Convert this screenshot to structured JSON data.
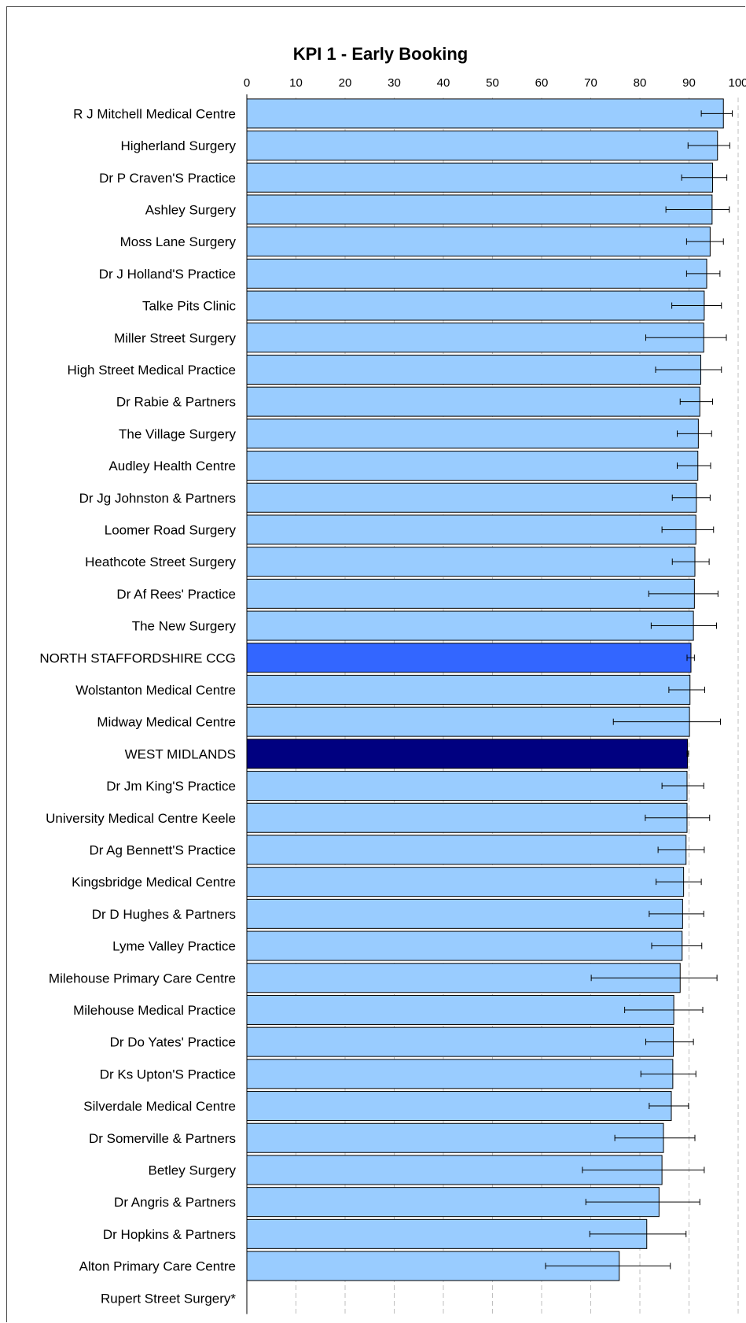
{
  "chart_data": {
    "type": "bar",
    "orientation": "horizontal",
    "title": "KPI 1 - Early Booking",
    "xlabel": "",
    "ylabel": "",
    "xlim": [
      0,
      100
    ],
    "xticks": [
      "0",
      "10",
      "20",
      "30",
      "40",
      "50",
      "60",
      "70",
      "80",
      "90",
      "100"
    ],
    "grid": "vertical dashed",
    "legend": "none",
    "colors": {
      "practice": "#99ccff",
      "ccg": "#3366ff",
      "region": "#000080",
      "outline": "#000000",
      "grid": "#bfbfbf"
    },
    "bars": [
      {
        "label": "R J Mitchell Medical Centre",
        "value": 97.0,
        "low": 92.5,
        "high": 98.8,
        "group": "practice"
      },
      {
        "label": "Higherland Surgery",
        "value": 95.8,
        "low": 89.8,
        "high": 98.3,
        "group": "practice"
      },
      {
        "label": "Dr P Craven'S Practice",
        "value": 94.8,
        "low": 88.5,
        "high": 97.7,
        "group": "practice"
      },
      {
        "label": "Ashley Surgery",
        "value": 94.7,
        "low": 85.3,
        "high": 98.2,
        "group": "practice"
      },
      {
        "label": "Moss Lane Surgery",
        "value": 94.3,
        "low": 89.5,
        "high": 97.0,
        "group": "practice"
      },
      {
        "label": "Dr J Holland'S Practice",
        "value": 93.6,
        "low": 89.5,
        "high": 96.3,
        "group": "practice"
      },
      {
        "label": "Talke Pits Clinic",
        "value": 93.1,
        "low": 86.5,
        "high": 96.6,
        "group": "practice"
      },
      {
        "label": "Miller Street Surgery",
        "value": 93.0,
        "low": 81.2,
        "high": 97.6,
        "group": "practice"
      },
      {
        "label": "High Street Medical Practice",
        "value": 92.4,
        "low": 83.2,
        "high": 96.6,
        "group": "practice"
      },
      {
        "label": "Dr Rabie & Partners",
        "value": 92.2,
        "low": 88.2,
        "high": 94.8,
        "group": "practice"
      },
      {
        "label": "The Village Surgery",
        "value": 91.9,
        "low": 87.6,
        "high": 94.6,
        "group": "practice"
      },
      {
        "label": "Audley Health Centre",
        "value": 91.8,
        "low": 87.6,
        "high": 94.4,
        "group": "practice"
      },
      {
        "label": "Dr Jg Johnston & Partners",
        "value": 91.5,
        "low": 86.6,
        "high": 94.3,
        "group": "practice"
      },
      {
        "label": "Loomer Road Surgery",
        "value": 91.4,
        "low": 84.5,
        "high": 95.0,
        "group": "practice"
      },
      {
        "label": "Heathcote Street Surgery",
        "value": 91.2,
        "low": 86.6,
        "high": 94.1,
        "group": "practice"
      },
      {
        "label": "Dr Af Rees' Practice",
        "value": 91.1,
        "low": 81.8,
        "high": 95.9,
        "group": "practice"
      },
      {
        "label": "The New Surgery",
        "value": 90.9,
        "low": 82.3,
        "high": 95.6,
        "group": "practice"
      },
      {
        "label": "NORTH STAFFORDSHIRE CCG",
        "value": 90.4,
        "low": 89.6,
        "high": 91.1,
        "group": "ccg"
      },
      {
        "label": "Wolstanton Medical Centre",
        "value": 90.2,
        "low": 85.9,
        "high": 93.2,
        "group": "practice"
      },
      {
        "label": "Midway Medical Centre",
        "value": 90.1,
        "low": 74.6,
        "high": 96.4,
        "group": "practice"
      },
      {
        "label": "WEST MIDLANDS",
        "value": 89.7,
        "low": 89.6,
        "high": 89.9,
        "group": "region"
      },
      {
        "label": "Dr Jm King'S Practice",
        "value": 89.6,
        "low": 84.5,
        "high": 93.0,
        "group": "practice"
      },
      {
        "label": "University Medical Centre Keele",
        "value": 89.6,
        "low": 81.1,
        "high": 94.2,
        "group": "practice"
      },
      {
        "label": "Dr Ag Bennett'S Practice",
        "value": 89.4,
        "low": 83.7,
        "high": 93.1,
        "group": "practice"
      },
      {
        "label": "Kingsbridge Medical Centre",
        "value": 88.9,
        "low": 83.3,
        "high": 92.5,
        "group": "practice"
      },
      {
        "label": "Dr D Hughes & Partners",
        "value": 88.7,
        "low": 81.9,
        "high": 93.0,
        "group": "practice"
      },
      {
        "label": "Lyme Valley Practice",
        "value": 88.6,
        "low": 82.4,
        "high": 92.6,
        "group": "practice"
      },
      {
        "label": "Milehouse Primary Care Centre",
        "value": 88.2,
        "low": 70.1,
        "high": 95.7,
        "group": "practice"
      },
      {
        "label": "Milehouse Medical Practice",
        "value": 86.9,
        "low": 76.9,
        "high": 92.8,
        "group": "practice"
      },
      {
        "label": "Dr Do Yates' Practice",
        "value": 86.8,
        "low": 81.2,
        "high": 90.9,
        "group": "practice"
      },
      {
        "label": "Dr Ks Upton'S Practice",
        "value": 86.7,
        "low": 80.2,
        "high": 91.4,
        "group": "practice"
      },
      {
        "label": "Silverdale Medical Centre",
        "value": 86.4,
        "low": 81.9,
        "high": 89.9,
        "group": "practice"
      },
      {
        "label": "Dr Somerville & Partners",
        "value": 84.8,
        "low": 74.9,
        "high": 91.2,
        "group": "practice"
      },
      {
        "label": "Betley Surgery",
        "value": 84.5,
        "low": 68.3,
        "high": 93.1,
        "group": "practice"
      },
      {
        "label": "Dr Angris & Partners",
        "value": 83.9,
        "low": 69.0,
        "high": 92.2,
        "group": "practice"
      },
      {
        "label": "Dr Hopkins & Partners",
        "value": 81.4,
        "low": 69.8,
        "high": 89.4,
        "group": "practice"
      },
      {
        "label": "Alton Primary Care Centre",
        "value": 75.8,
        "low": 60.8,
        "high": 86.2,
        "group": "practice"
      },
      {
        "label": "Rupert Street Surgery*",
        "value": 0,
        "low": null,
        "high": null,
        "group": "practice"
      }
    ]
  }
}
